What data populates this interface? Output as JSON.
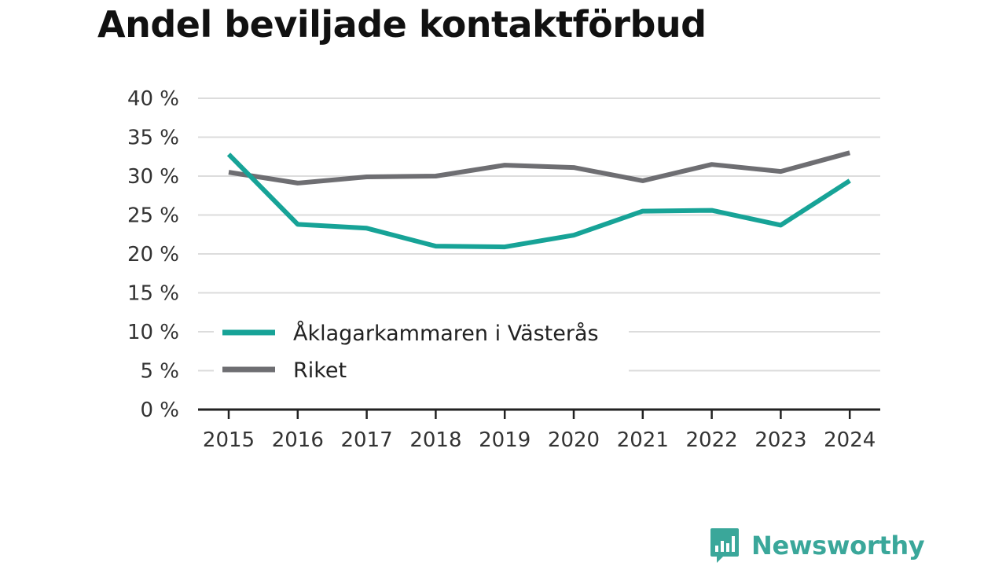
{
  "chart_data": {
    "type": "line",
    "title": "Andel beviljade kontaktförbud",
    "x": [
      "2015",
      "2016",
      "2017",
      "2018",
      "2019",
      "2020",
      "2021",
      "2022",
      "2023",
      "2024"
    ],
    "y_ticks": [
      "0 %",
      "5 %",
      "10 %",
      "15 %",
      "20 %",
      "25 %",
      "30 %",
      "35 %",
      "40 %"
    ],
    "ylim": [
      0,
      40
    ],
    "grid": true,
    "legend_position": "bottom-left inside plot",
    "series": [
      {
        "name": "Åklagarkammaren i Västerås",
        "color": "#17a397",
        "values": [
          32.8,
          23.8,
          23.3,
          21.0,
          20.9,
          22.4,
          25.5,
          25.6,
          23.7,
          29.4
        ]
      },
      {
        "name": "Riket",
        "color": "#6e6e72",
        "values": [
          30.5,
          29.1,
          29.9,
          30.0,
          31.4,
          31.1,
          29.4,
          31.5,
          30.6,
          33.0
        ]
      }
    ]
  },
  "branding": {
    "logo_text": "Newsworthy",
    "logo_icon": "bar-chart-speech-bubble-icon",
    "logo_color": "#3aa79a"
  }
}
